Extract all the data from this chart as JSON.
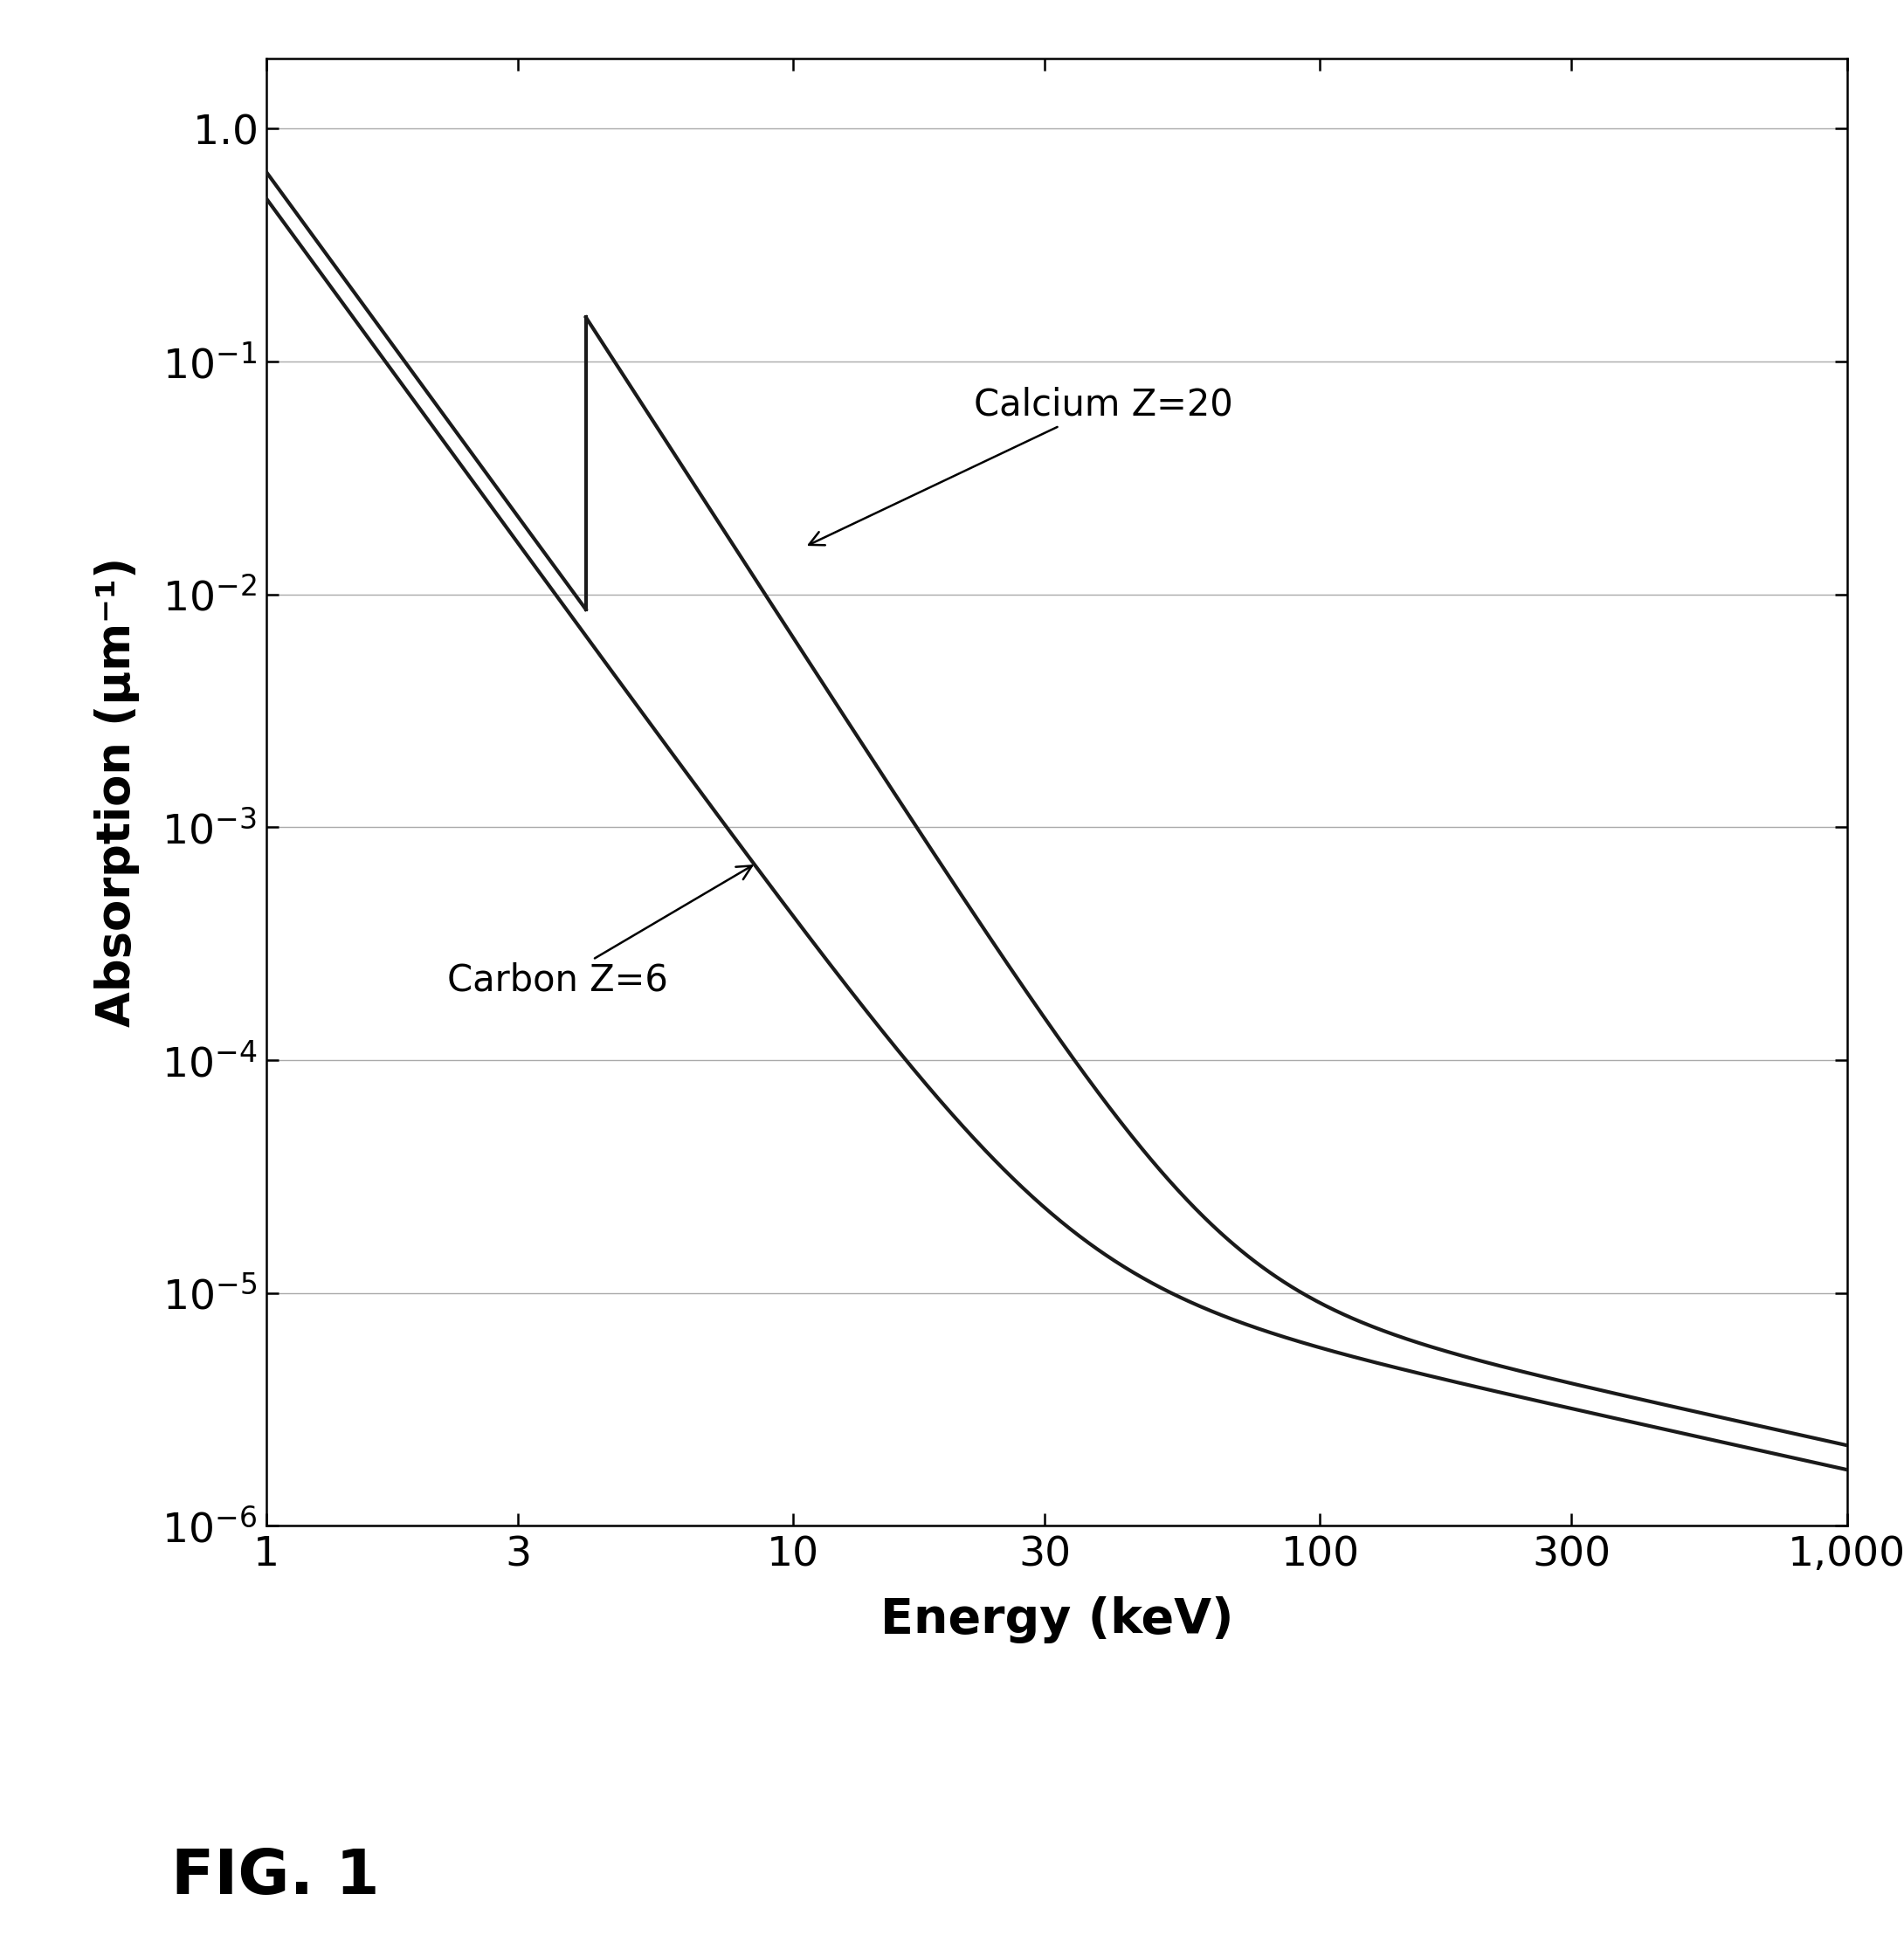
{
  "xlabel": "Energy (keV)",
  "ylabel": "Absorption (μm⁻¹)",
  "fig_label": "FIG. 1",
  "xlim": [
    1,
    1000
  ],
  "ylim": [
    1e-06,
    2.0
  ],
  "xticks": [
    1,
    3,
    10,
    30,
    100,
    300,
    1000
  ],
  "xtick_labels": [
    "1",
    "3",
    "10",
    "30",
    "100",
    "300",
    "1,000"
  ],
  "line_color": "#1a1a1a",
  "background_color": "#ffffff",
  "annotation_calcium": "Calcium Z=20",
  "annotation_carbon": "Carbon Z=6",
  "xlabel_fontsize": 40,
  "ylabel_fontsize": 38,
  "tick_fontsize": 34,
  "annotation_fontsize": 30,
  "fig_label_fontsize": 52,
  "linewidth": 3.0,
  "calcium_kedge": 4.038,
  "carbon_at1": 0.5,
  "carbon_slope": 3.1,
  "carbon_compton": 5.5e-05,
  "calcium_lo_at1": 0.65,
  "calcium_lo_slope": 3.1,
  "calcium_hi_at_edge": 0.155,
  "calcium_hi_slope": 3.5,
  "calcium_compton": 7e-05,
  "grid_color": "#aaaaaa",
  "grid_linewidth": 1.0
}
